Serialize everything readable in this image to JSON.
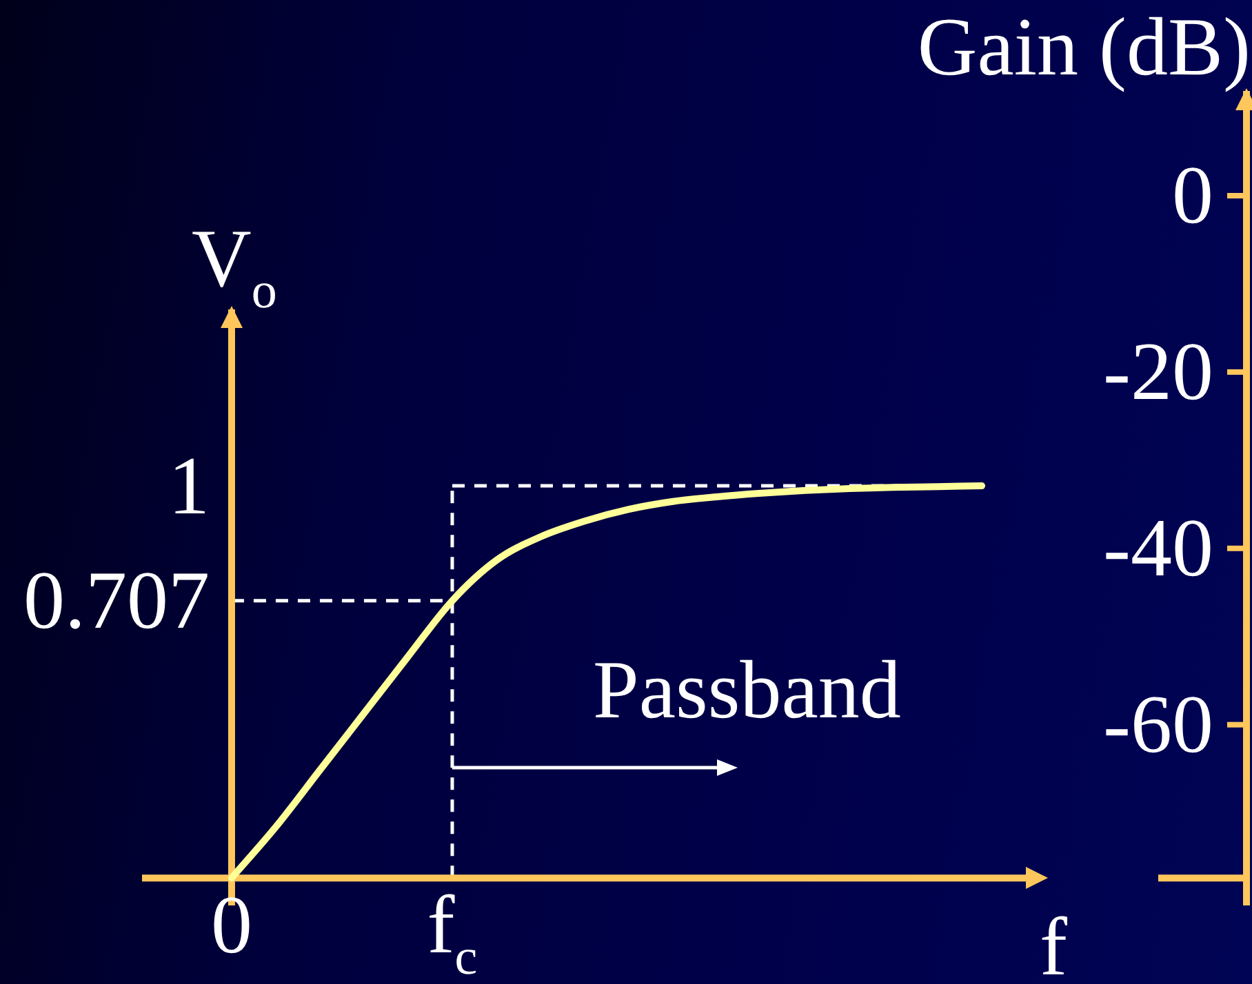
{
  "chart_data": {
    "type": "line",
    "ylabel": "V$_{o}$",
    "xlabel": "f",
    "y2label": "Gain (dB)",
    "categories": [
      "0",
      null,
      null,
      null,
      null,
      "f$_{c}$",
      null,
      null,
      null,
      null,
      null,
      null,
      null,
      null,
      null,
      null,
      null,
      null
    ],
    "series": [
      {
        "color": "#ffff99",
        "values": [
          0,
          0.13,
          0.275,
          0.42,
          0.565,
          0.707,
          0.81,
          0.87,
          0.91,
          0.94,
          0.96,
          0.972,
          0.981,
          0.988,
          0.993,
          0.996,
          0.998,
          1
        ]
      }
    ],
    "ylim": [
      -0.07,
      1.45
    ],
    "y2lim": [
      -80.5,
      0
    ],
    "yticks": [
      0.707,
      1
    ],
    "y2ticks": [
      0,
      -20,
      -40,
      -60
    ],
    "ref_lines": [
      {
        "axis": "x",
        "value": "f$_{c}$",
        "color": "#ffffff",
        "line_style": "dashed"
      },
      {
        "axis": "y",
        "value": 0.707,
        "color": "#ffffff",
        "line_style": "dashed"
      },
      {
        "axis": "y",
        "value": 1,
        "color": "#ffffff",
        "line_style": "dashed"
      }
    ],
    "annotations": [
      {
        "text": "Passband",
        "x": "f$_{c}$",
        "y": 0.28
      }
    ],
    "marker": "none",
    "line_style": "solid"
  }
}
